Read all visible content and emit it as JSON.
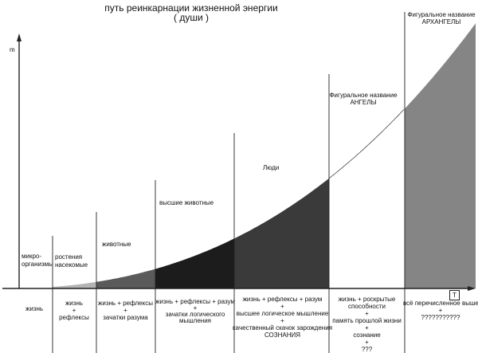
{
  "title": {
    "line1": "путь реинкарнации  жизненной энергии",
    "line2": "( души )"
  },
  "axes": {
    "y_label": "m",
    "t_box": "T"
  },
  "stages": [
    {
      "name": "микро-организмы",
      "top_label": "микро-\nорганизмы",
      "bottom_label": "жизнь"
    },
    {
      "name": "растения",
      "top_label": "ростения\nнасекомые",
      "bottom_label": "жизнь\n+\nрефлексы"
    },
    {
      "name": "животные",
      "top_label": "животные",
      "bottom_label": "жизнь + рефлексы\n+\nзачатки разума"
    },
    {
      "name": "высшие животные",
      "top_label": "высшие  животные",
      "bottom_label": "жизнь + рефлексы + разум\n+\nзачатки логического\nмышления"
    },
    {
      "name": "люди",
      "top_label": "Люди",
      "bottom_label": "жизнь + рефлексы + разум\n+\nвысшее логическое мышление\n+\nкачественный скачок зарождения\nСОЗНАНИЯ"
    },
    {
      "name": "ангелы",
      "top_label": "Фигуральное название\nАНГЕЛЫ",
      "bottom_label": "жизнь + роскрытые\nспособности\n+\nпамять прошлой жизни\n+\nсознание\n+\n???"
    },
    {
      "name": "архангелы",
      "top_label": "Фигуральное название\nАРХАНГЕЛЫ",
      "bottom_label": "всё перечисленное выше\n+\n???????????"
    }
  ],
  "colors": {
    "background": "#ffffff",
    "line": "#222222",
    "stage_fills": [
      "#ffffff",
      "#b4b4b4",
      "#5a5a5a",
      "#1c1c1c",
      "#3a3a3a",
      "#ffffff",
      "#858585"
    ]
  }
}
